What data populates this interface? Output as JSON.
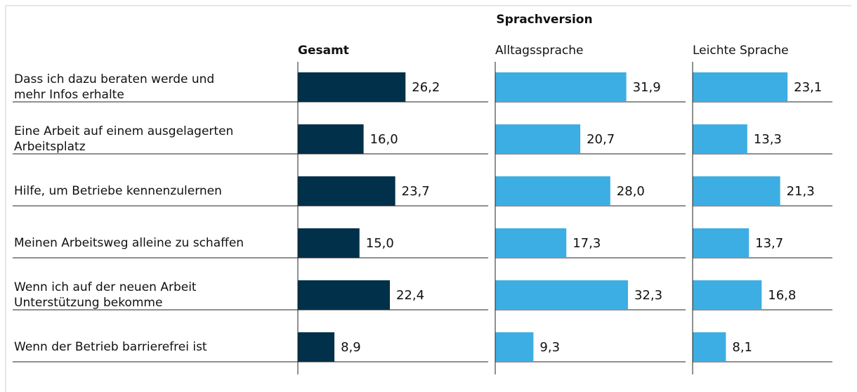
{
  "chart_data": {
    "type": "bar",
    "orientation": "horizontal",
    "title": "Sprachversion",
    "categories": [
      "Dass ich dazu beraten werde und\nmehr Infos erhalte",
      "Eine Arbeit auf einem ausgelagerten\nArbeitsplatz",
      "Hilfe, um Betriebe kennenzulernen",
      "Meinen Arbeitsweg alleine zu schaffen",
      "Wenn ich auf der neuen Arbeit\nUnterstützung bekomme",
      "Wenn der Betrieb barrierefrei ist"
    ],
    "series": [
      {
        "name": "Gesamt",
        "color": "#00304a",
        "values": [
          26.2,
          16.0,
          23.7,
          15.0,
          22.4,
          8.9
        ],
        "value_labels": [
          "26,2",
          "16,0",
          "23,7",
          "15,0",
          "22,4",
          "8,9"
        ]
      },
      {
        "name": "Alltagssprache",
        "color": "#3daee3",
        "values": [
          31.9,
          20.7,
          28.0,
          17.3,
          32.3,
          9.3
        ],
        "value_labels": [
          "31,9",
          "20,7",
          "28,0",
          "17,3",
          "32,3",
          "9,3"
        ]
      },
      {
        "name": "Leichte Sprache",
        "color": "#3daee3",
        "values": [
          23.1,
          13.3,
          21.3,
          13.7,
          16.8,
          8.1
        ],
        "value_labels": [
          "23,1",
          "13,3",
          "21,3",
          "13,7",
          "16,8",
          "8,1"
        ]
      }
    ]
  }
}
